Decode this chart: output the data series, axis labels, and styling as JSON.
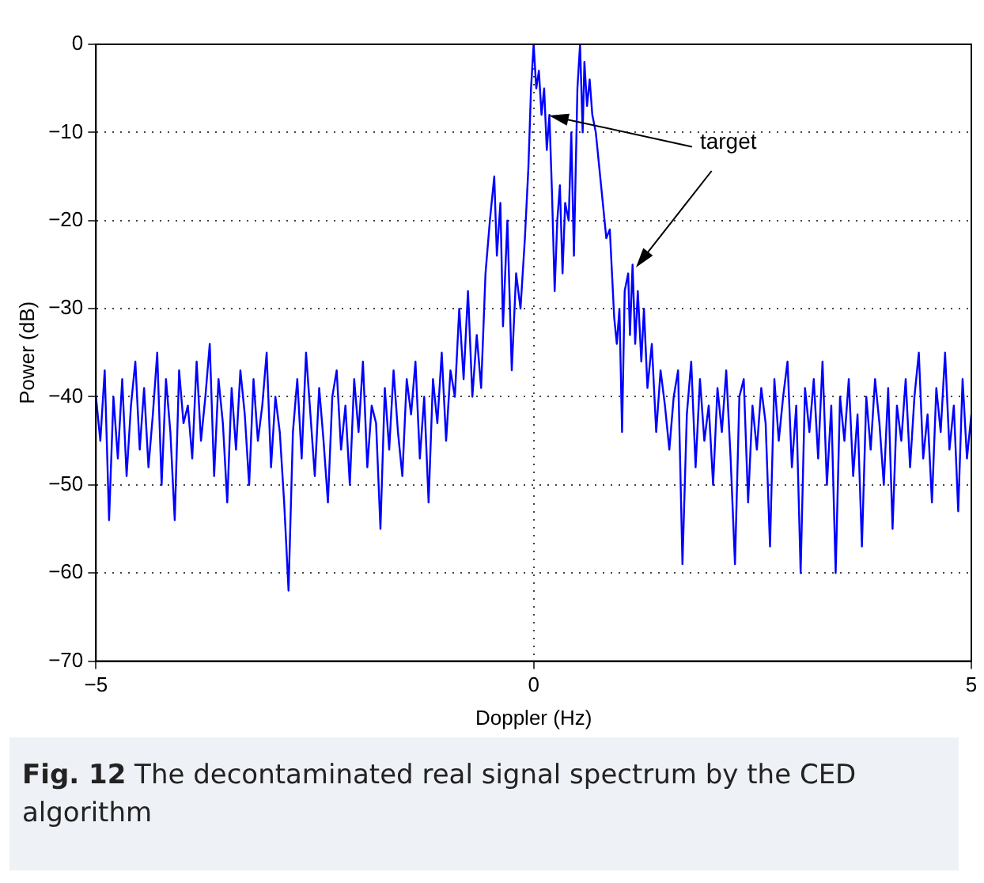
{
  "chart_data": {
    "type": "line",
    "xlabel": "Doppler (Hz)",
    "ylabel": "Power (dB)",
    "annotations": [
      {
        "text": "target",
        "x": 1.13,
        "y": -25
      },
      "Fig. 12 The decontaminated real signal spectrum by the CED algorithm"
    ],
    "xlim": [
      -5,
      5
    ],
    "xticks": [
      {
        "value": -5,
        "label": "−5"
      },
      0,
      5
    ],
    "ylim": [
      -70,
      0
    ],
    "yticks": [
      {
        "value": -70,
        "label": "−70"
      },
      {
        "value": -60,
        "label": "−60"
      },
      {
        "value": -50,
        "label": "−50"
      },
      {
        "value": -40,
        "label": "−40"
      },
      {
        "value": -30,
        "label": "−30"
      },
      {
        "value": -20,
        "label": "−20"
      },
      {
        "value": -10,
        "label": "−10"
      },
      0
    ],
    "grid": true,
    "legend": false,
    "marker": "none",
    "line_style": "solid",
    "series": [
      {
        "color": "#0000ff",
        "x": [
          -5,
          -4.95,
          -4.9,
          -4.85,
          -4.8,
          -4.75,
          -4.7,
          -4.65,
          -4.6,
          -4.55,
          -4.5,
          -4.45,
          -4.4,
          -4.35,
          -4.3,
          -4.25,
          -4.2,
          -4.15,
          -4.1,
          -4.05,
          -4,
          -3.95,
          -3.9,
          -3.85,
          -3.8,
          -3.75,
          -3.7,
          -3.65,
          -3.6,
          -3.55,
          -3.5,
          -3.45,
          -3.4,
          -3.35,
          -3.3,
          -3.25,
          -3.2,
          -3.15,
          -3.1,
          -3.05,
          -3,
          -2.95,
          -2.9,
          -2.85,
          -2.8,
          -2.75,
          -2.7,
          -2.65,
          -2.6,
          -2.55,
          -2.5,
          -2.45,
          -2.4,
          -2.35,
          -2.3,
          -2.25,
          -2.2,
          -2.15,
          -2.1,
          -2.05,
          -2,
          -1.95,
          -1.9,
          -1.85,
          -1.8,
          -1.75,
          -1.7,
          -1.65,
          -1.6,
          -1.55,
          -1.5,
          -1.45,
          -1.4,
          -1.35,
          -1.3,
          -1.25,
          -1.2,
          -1.15,
          -1.1,
          -1.05,
          -1,
          -0.95,
          -0.9,
          -0.85,
          -0.8,
          -0.75,
          -0.7,
          -0.65,
          -0.6,
          -0.55,
          -0.5,
          -0.45,
          -0.42,
          -0.38,
          -0.35,
          -0.3,
          -0.25,
          -0.2,
          -0.15,
          -0.1,
          -0.06,
          -0.03,
          0,
          0.03,
          0.06,
          0.09,
          0.12,
          0.15,
          0.18,
          0.21,
          0.24,
          0.27,
          0.3,
          0.33,
          0.36,
          0.4,
          0.43,
          0.46,
          0.5,
          0.53,
          0.56,
          0.58,
          0.61,
          0.64,
          0.67,
          0.71,
          0.75,
          0.79,
          0.83,
          0.87,
          0.92,
          0.95,
          0.98,
          1.01,
          1.04,
          1.08,
          1.1,
          1.13,
          1.16,
          1.19,
          1.23,
          1.26,
          1.3,
          1.35,
          1.4,
          1.45,
          1.5,
          1.55,
          1.6,
          1.65,
          1.7,
          1.75,
          1.8,
          1.85,
          1.9,
          1.95,
          2,
          2.05,
          2.1,
          2.15,
          2.2,
          2.25,
          2.3,
          2.35,
          2.4,
          2.45,
          2.5,
          2.55,
          2.6,
          2.65,
          2.7,
          2.75,
          2.8,
          2.85,
          2.9,
          2.95,
          3,
          3.05,
          3.1,
          3.15,
          3.2,
          3.25,
          3.3,
          3.35,
          3.4,
          3.45,
          3.5,
          3.55,
          3.6,
          3.65,
          3.7,
          3.75,
          3.8,
          3.85,
          3.9,
          3.95,
          4,
          4.05,
          4.1,
          4.15,
          4.2,
          4.25,
          4.3,
          4.35,
          4.4,
          4.45,
          4.5,
          4.55,
          4.6,
          4.65,
          4.7,
          4.75,
          4.8,
          4.85,
          4.9,
          4.95,
          5
        ],
        "values": [
          -40,
          -45,
          -37,
          -54,
          -40,
          -47,
          -38,
          -49,
          -41,
          -36,
          -46,
          -39,
          -48,
          -42,
          -35,
          -50,
          -38,
          -44,
          -54,
          -37,
          -43,
          -41,
          -47,
          -36,
          -45,
          -40,
          -34,
          -49,
          -38,
          -43,
          -52,
          -39,
          -46,
          -37,
          -42,
          -50,
          -38,
          -45,
          -41,
          -35,
          -48,
          -40,
          -44,
          -52,
          -62,
          -44,
          -38,
          -47,
          -35,
          -42,
          -49,
          -39,
          -45,
          -52,
          -40,
          -37,
          -46,
          -41,
          -50,
          -38,
          -44,
          -36,
          -48,
          -41,
          -43,
          -55,
          -39,
          -46,
          -37,
          -44,
          -49,
          -38,
          -42,
          -36,
          -47,
          -40,
          -52,
          -38,
          -43,
          -35,
          -45,
          -37,
          -40,
          -30,
          -38,
          -28,
          -40,
          -33,
          -39,
          -26,
          -20,
          -15,
          -24,
          -18,
          -32,
          -20,
          -37,
          -26,
          -30,
          -22,
          -14,
          -5,
          0,
          -5,
          -3,
          -8,
          -5,
          -12,
          -8,
          -17,
          -28,
          -20,
          -16,
          -26,
          -18,
          -20,
          -10,
          -24,
          -5,
          0,
          -10,
          -2,
          -7,
          -4,
          -8,
          -10,
          -14,
          -18,
          -22,
          -21,
          -31,
          -34,
          -30,
          -44,
          -28,
          -26,
          -33,
          -25,
          -34,
          -28,
          -36,
          -30,
          -39,
          -34,
          -44,
          -37,
          -41,
          -46,
          -40,
          -37,
          -59,
          -42,
          -36,
          -48,
          -38,
          -45,
          -41,
          -50,
          -39,
          -44,
          -37,
          -47,
          -59,
          -40,
          -38,
          -52,
          -41,
          -46,
          -39,
          -43,
          -57,
          -38,
          -45,
          -40,
          -36,
          -48,
          -41,
          -60,
          -39,
          -44,
          -38,
          -47,
          -36,
          -50,
          -41,
          -60,
          -40,
          -45,
          -38,
          -49,
          -42,
          -57,
          -40,
          -46,
          -38,
          -43,
          -50,
          -39,
          -55,
          -41,
          -45,
          -38,
          -48,
          -40,
          -35,
          -47,
          -42,
          -52,
          -39,
          -44,
          -35,
          -46,
          -41,
          -53,
          -38,
          -47,
          -42
        ]
      }
    ]
  }
}
